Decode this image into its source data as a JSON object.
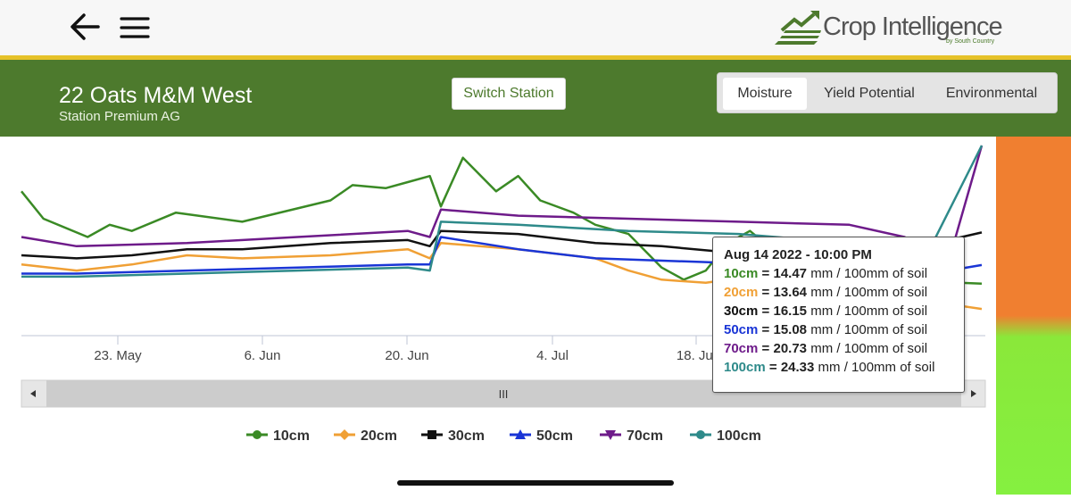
{
  "app": {
    "brand_name": "Crop Intelligence",
    "brand_tagline": "by South Country"
  },
  "header": {
    "back_icon": "arrow-left-icon",
    "menu_icon": "hamburger-menu-icon"
  },
  "station": {
    "title": "22 Oats M&M West",
    "subtitle": "Station Premium AG",
    "switch_label": "Switch Station"
  },
  "tabs": [
    {
      "label": "Moisture",
      "active": true
    },
    {
      "label": "Yield Potential",
      "active": false
    },
    {
      "label": "Environmental",
      "active": false
    }
  ],
  "colors": {
    "header_green": "#4d7a2d",
    "accent_yellow": "#e6c229",
    "status_orange": "#f07f30",
    "status_green": "#85f040"
  },
  "chart_data": {
    "type": "line",
    "x_ticks": [
      "23. May",
      "6. Jun",
      "20. Jun",
      "4. Jul",
      "18. Jul"
    ],
    "series": [
      {
        "name": "10cm",
        "color": "#3a8a25",
        "marker": "circle",
        "values": [
          [
            0,
            17.5
          ],
          [
            2,
            16.6
          ],
          [
            6,
            16.0
          ],
          [
            8,
            16.4
          ],
          [
            10,
            16.2
          ],
          [
            14,
            16.8
          ],
          [
            20,
            16.5
          ],
          [
            28,
            17.2
          ],
          [
            30,
            17.7
          ],
          [
            33,
            17.6
          ],
          [
            35,
            17.8
          ],
          [
            37,
            18.0
          ],
          [
            38,
            17.0
          ],
          [
            40,
            18.6
          ],
          [
            43,
            17.5
          ],
          [
            45,
            18.0
          ],
          [
            47,
            17.2
          ],
          [
            50,
            16.8
          ],
          [
            52,
            16.4
          ],
          [
            55,
            16.1
          ],
          [
            58,
            15.0
          ],
          [
            60,
            14.6
          ],
          [
            62,
            14.9
          ],
          [
            64,
            15.8
          ],
          [
            66,
            16.2
          ],
          [
            68,
            15.6
          ],
          [
            70,
            15.3
          ],
          [
            72,
            14.9
          ],
          [
            74,
            14.8
          ],
          [
            75,
            15.4
          ],
          [
            77,
            14.8
          ],
          [
            78,
            14.6
          ],
          [
            79,
            15.2
          ],
          [
            81,
            14.9
          ],
          [
            83,
            14.6
          ],
          [
            85,
            14.5
          ],
          [
            87,
            14.47
          ]
        ]
      },
      {
        "name": "20cm",
        "color": "#f0a035",
        "marker": "diamond",
        "values": [
          [
            0,
            15.1
          ],
          [
            5,
            14.9
          ],
          [
            10,
            15.1
          ],
          [
            15,
            15.4
          ],
          [
            20,
            15.3
          ],
          [
            28,
            15.4
          ],
          [
            35,
            15.6
          ],
          [
            37,
            15.3
          ],
          [
            38,
            15.8
          ],
          [
            45,
            15.6
          ],
          [
            52,
            15.3
          ],
          [
            55,
            14.9
          ],
          [
            58,
            14.6
          ],
          [
            62,
            14.5
          ],
          [
            66,
            14.7
          ],
          [
            70,
            14.5
          ],
          [
            72,
            14.1
          ],
          [
            73,
            14.4
          ],
          [
            76,
            14.2
          ],
          [
            80,
            13.9
          ],
          [
            84,
            13.8
          ],
          [
            87,
            13.64
          ]
        ]
      },
      {
        "name": "30cm",
        "color": "#111111",
        "marker": "square",
        "values": [
          [
            0,
            15.4
          ],
          [
            5,
            15.3
          ],
          [
            10,
            15.4
          ],
          [
            15,
            15.6
          ],
          [
            20,
            15.6
          ],
          [
            28,
            15.8
          ],
          [
            35,
            15.9
          ],
          [
            37,
            15.7
          ],
          [
            38,
            16.2
          ],
          [
            45,
            16.1
          ],
          [
            52,
            15.8
          ],
          [
            58,
            15.7
          ],
          [
            64,
            15.5
          ],
          [
            70,
            15.4
          ],
          [
            76,
            15.3
          ],
          [
            80,
            15.2
          ],
          [
            84,
            15.9
          ],
          [
            87,
            16.15
          ]
        ]
      },
      {
        "name": "50cm",
        "color": "#1a35d6",
        "marker": "triangle",
        "values": [
          [
            0,
            14.8
          ],
          [
            5,
            14.8
          ],
          [
            15,
            14.9
          ],
          [
            25,
            15.0
          ],
          [
            35,
            15.1
          ],
          [
            37,
            15.1
          ],
          [
            38,
            16.0
          ],
          [
            45,
            15.6
          ],
          [
            52,
            15.3
          ],
          [
            60,
            15.2
          ],
          [
            68,
            15.1
          ],
          [
            76,
            15.0
          ],
          [
            84,
            14.9
          ],
          [
            87,
            15.08
          ]
        ]
      },
      {
        "name": "70cm",
        "color": "#6e1b8a",
        "marker": "triangle-down",
        "values": [
          [
            0,
            16.0
          ],
          [
            5,
            15.7
          ],
          [
            15,
            15.8
          ],
          [
            25,
            16.0
          ],
          [
            35,
            16.2
          ],
          [
            37,
            16.0
          ],
          [
            38,
            16.9
          ],
          [
            45,
            16.7
          ],
          [
            55,
            16.6
          ],
          [
            65,
            16.5
          ],
          [
            75,
            16.4
          ],
          [
            80,
            16.0
          ],
          [
            84,
            15.2
          ],
          [
            87,
            20.73
          ]
        ]
      },
      {
        "name": "100cm",
        "color": "#2e8a8a",
        "marker": "circle",
        "values": [
          [
            0,
            14.7
          ],
          [
            5,
            14.7
          ],
          [
            15,
            14.8
          ],
          [
            25,
            14.9
          ],
          [
            35,
            15.0
          ],
          [
            37,
            14.9
          ],
          [
            38,
            16.5
          ],
          [
            45,
            16.4
          ],
          [
            55,
            16.2
          ],
          [
            65,
            16.1
          ],
          [
            75,
            15.8
          ],
          [
            82,
            15.4
          ],
          [
            87,
            24.33
          ]
        ]
      }
    ],
    "tooltip": {
      "title": "Aug 14 2022 - 10:00 PM",
      "rows": [
        {
          "label": "10cm",
          "value": "14.47",
          "unit": "mm / 100mm of soil",
          "color": "#3a8a25"
        },
        {
          "label": "20cm",
          "value": "13.64",
          "unit": "mm / 100mm of soil",
          "color": "#f0a035"
        },
        {
          "label": "30cm",
          "value": "16.15",
          "unit": "mm / 100mm of soil",
          "color": "#111111"
        },
        {
          "label": "50cm",
          "value": "15.08",
          "unit": "mm / 100mm of soil",
          "color": "#1a35d6"
        },
        {
          "label": "70cm",
          "value": "20.73",
          "unit": "mm / 100mm of soil",
          "color": "#6e1b8a"
        },
        {
          "label": "100cm",
          "value": "24.33",
          "unit": "mm / 100mm of soil",
          "color": "#2e8a8a"
        }
      ]
    },
    "navigator_grip": "III",
    "legend_position": "bottom"
  }
}
